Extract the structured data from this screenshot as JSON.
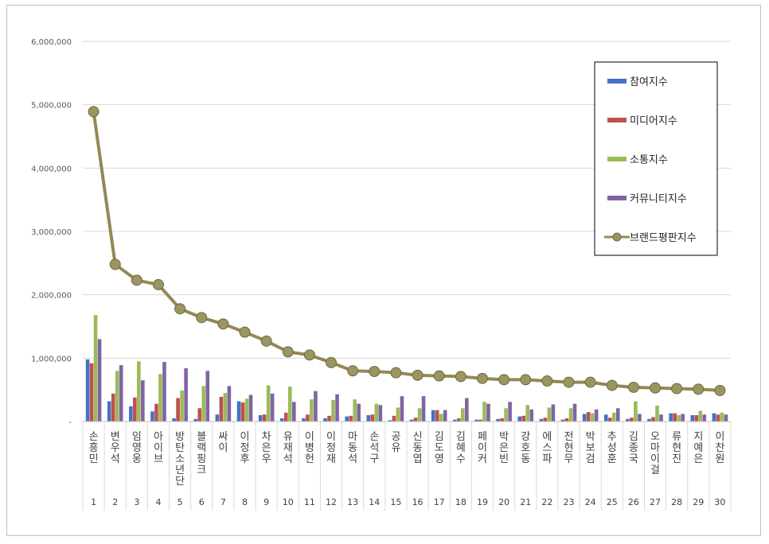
{
  "chart_data": {
    "type": "bar",
    "y_ticks": [
      "6,000,000",
      "5,000,000",
      "4,000,000",
      "3,000,000",
      "2,000,000",
      "1,000,000",
      "-"
    ],
    "ylim": [
      0,
      6000000
    ],
    "grid": true,
    "legend_position": "top-right",
    "ranks": [
      "1",
      "2",
      "3",
      "4",
      "5",
      "6",
      "7",
      "8",
      "9",
      "10",
      "11",
      "12",
      "13",
      "14",
      "15",
      "16",
      "17",
      "18",
      "19",
      "20",
      "21",
      "22",
      "23",
      "24",
      "25",
      "26",
      "27",
      "28",
      "29",
      "30"
    ],
    "categories": [
      "손흥민",
      "변우석",
      "임영웅",
      "아이브",
      "방탄소년단",
      "블랙핑크",
      "싸이",
      "이정후",
      "차은우",
      "유재석",
      "이병헌",
      "이정재",
      "마동석",
      "손석구",
      "공유",
      "신동엽",
      "김도영",
      "김혜수",
      "페이커",
      "박은빈",
      "강호동",
      "에스파",
      "전현무",
      "박보검",
      "추성훈",
      "김종국",
      "오마이걸",
      "류현진",
      "지예은",
      "이찬원"
    ],
    "series": [
      {
        "name": "참여지수",
        "kind": "bar",
        "color": "#4472c4",
        "values": [
          980000,
          320000,
          240000,
          160000,
          50000,
          40000,
          110000,
          320000,
          100000,
          50000,
          50000,
          50000,
          80000,
          100000,
          20000,
          30000,
          180000,
          30000,
          30000,
          40000,
          80000,
          40000,
          30000,
          120000,
          110000,
          40000,
          40000,
          130000,
          100000,
          130000
        ]
      },
      {
        "name": "미디어지수",
        "kind": "bar",
        "color": "#c0504d",
        "values": [
          920000,
          440000,
          380000,
          280000,
          370000,
          210000,
          390000,
          300000,
          110000,
          140000,
          110000,
          90000,
          90000,
          110000,
          90000,
          60000,
          180000,
          50000,
          30000,
          50000,
          90000,
          60000,
          50000,
          150000,
          60000,
          60000,
          70000,
          130000,
          100000,
          110000
        ]
      },
      {
        "name": "소통지수",
        "kind": "bar",
        "color": "#9bbb59",
        "values": [
          1680000,
          800000,
          950000,
          750000,
          490000,
          560000,
          450000,
          360000,
          570000,
          550000,
          350000,
          340000,
          350000,
          280000,
          220000,
          210000,
          120000,
          210000,
          310000,
          210000,
          260000,
          220000,
          210000,
          130000,
          140000,
          320000,
          250000,
          100000,
          170000,
          140000
        ]
      },
      {
        "name": "커뮤니티지수",
        "kind": "bar",
        "color": "#8064a2",
        "values": [
          1300000,
          890000,
          650000,
          940000,
          840000,
          800000,
          560000,
          420000,
          440000,
          310000,
          480000,
          430000,
          280000,
          260000,
          400000,
          400000,
          180000,
          370000,
          280000,
          310000,
          190000,
          270000,
          280000,
          190000,
          210000,
          120000,
          110000,
          120000,
          110000,
          110000
        ]
      },
      {
        "name": "브랜드평판지수",
        "kind": "line",
        "color": "#938953",
        "values": [
          4890000,
          2480000,
          2230000,
          2160000,
          1780000,
          1640000,
          1540000,
          1410000,
          1270000,
          1100000,
          1050000,
          930000,
          800000,
          790000,
          770000,
          730000,
          720000,
          710000,
          680000,
          660000,
          660000,
          640000,
          620000,
          620000,
          570000,
          540000,
          530000,
          520000,
          510000,
          490000
        ]
      }
    ]
  }
}
